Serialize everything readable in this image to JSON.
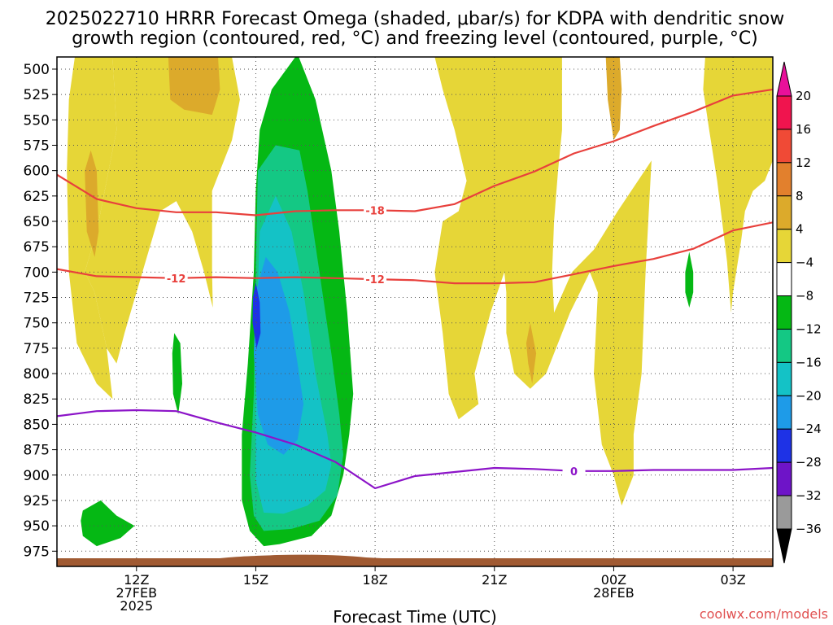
{
  "chart_data": {
    "type": "contour",
    "title_line1": "2025022710 HRRR Forecast Omega (shaded, μbar/s) for KDPA with dendritic snow",
    "title_line2": "growth region (contoured, red, °C) and freezing level (contoured, purple, °C)",
    "xlabel": "Forecast Time (UTC)",
    "credit": "coolwx.com/models",
    "y_axis": {
      "unit": "hPa",
      "range": [
        488,
        990
      ],
      "ticks": [
        500,
        525,
        550,
        575,
        600,
        625,
        650,
        675,
        700,
        725,
        750,
        775,
        800,
        825,
        850,
        875,
        900,
        925,
        950,
        975
      ]
    },
    "x_axis": {
      "range_hours_since_12z": [
        -2,
        16
      ],
      "ticks": [
        {
          "h": 0,
          "lines": [
            "12Z",
            "27FEB",
            "2025"
          ]
        },
        {
          "h": 3,
          "lines": [
            "15Z"
          ]
        },
        {
          "h": 6,
          "lines": [
            "18Z"
          ]
        },
        {
          "h": 9,
          "lines": [
            "21Z"
          ]
        },
        {
          "h": 12,
          "lines": [
            "00Z",
            "28FEB"
          ]
        },
        {
          "h": 15,
          "lines": [
            "03Z"
          ]
        }
      ]
    },
    "colorbar": {
      "labels": [
        "20",
        "16",
        "12",
        "8",
        "4",
        "−4",
        "−8",
        "−12",
        "−16",
        "−20",
        "−24",
        "−28",
        "−32",
        "−36"
      ],
      "colors": [
        "#f0144e",
        "#f04a36",
        "#e2802d",
        "#dcaa2b",
        "#e6d637",
        "#ffffff",
        "#05b814",
        "#14c884",
        "#14c2c6",
        "#1e9be8",
        "#1e32e6",
        "#6e14c8",
        "#a00ac8",
        "#9a9a9a"
      ],
      "top_arrow_color": "#e8109a",
      "bottom_arrow_color": "#000000"
    },
    "contours": {
      "dgz_minus18": {
        "label": "-18",
        "color": "#e8403c",
        "points": [
          [
            -2,
            604
          ],
          [
            -1,
            628
          ],
          [
            0,
            637
          ],
          [
            1,
            641
          ],
          [
            2,
            641
          ],
          [
            3,
            644
          ],
          [
            4,
            640
          ],
          [
            5,
            639
          ],
          [
            6,
            639
          ],
          [
            7,
            640
          ],
          [
            8,
            633
          ],
          [
            9,
            615
          ],
          [
            10,
            601
          ],
          [
            11,
            583
          ],
          [
            12,
            571
          ],
          [
            13,
            556
          ],
          [
            14,
            542
          ],
          [
            15,
            526
          ],
          [
            16,
            520
          ]
        ]
      },
      "dgz_minus12": {
        "label": "-12",
        "color": "#e8403c",
        "points": [
          [
            -2,
            697
          ],
          [
            -1,
            704
          ],
          [
            0,
            705
          ],
          [
            1,
            706
          ],
          [
            2,
            705
          ],
          [
            3,
            706
          ],
          [
            4,
            705
          ],
          [
            5,
            706
          ],
          [
            6,
            707
          ],
          [
            7,
            708
          ],
          [
            8,
            711
          ],
          [
            9,
            711
          ],
          [
            10,
            710
          ],
          [
            11,
            702
          ],
          [
            12,
            694
          ],
          [
            13,
            687
          ],
          [
            14,
            677
          ],
          [
            15,
            659
          ],
          [
            16,
            651
          ]
        ]
      },
      "freezing_level": {
        "label": "0",
        "color": "#8c14c8",
        "points": [
          [
            -2,
            842
          ],
          [
            -1,
            837
          ],
          [
            0,
            836
          ],
          [
            1,
            837
          ],
          [
            2,
            848
          ],
          [
            3,
            858
          ],
          [
            4,
            870
          ],
          [
            5,
            887
          ],
          [
            6,
            913
          ],
          [
            7,
            901
          ],
          [
            8,
            897
          ],
          [
            9,
            893
          ],
          [
            10,
            894
          ],
          [
            11,
            896
          ],
          [
            12,
            896
          ],
          [
            13,
            895
          ],
          [
            14,
            895
          ],
          [
            15,
            895
          ],
          [
            16,
            893
          ]
        ]
      }
    },
    "omega_regions": [
      {
        "level": "4",
        "color": "#e6d637",
        "points": [
          [
            -1.55,
            488
          ],
          [
            -0.6,
            488
          ],
          [
            -0.5,
            560
          ],
          [
            -1.0,
            660
          ],
          [
            -1.3,
            700
          ],
          [
            -1.05,
            720
          ],
          [
            -0.75,
            775
          ],
          [
            -0.6,
            825
          ],
          [
            -1.0,
            810
          ],
          [
            -1.5,
            770
          ],
          [
            -1.7,
            700
          ],
          [
            -1.75,
            600
          ],
          [
            -1.7,
            530
          ]
        ]
      },
      {
        "level": "4",
        "color": "#e6d637",
        "points": [
          [
            -0.6,
            488
          ],
          [
            2.4,
            488
          ],
          [
            2.6,
            530
          ],
          [
            2.4,
            570
          ],
          [
            1.9,
            620
          ],
          [
            1.9,
            700
          ],
          [
            1.92,
            735
          ],
          [
            1.7,
            700
          ],
          [
            1.4,
            660
          ],
          [
            1.0,
            630
          ],
          [
            0.6,
            640
          ],
          [
            0.15,
            700
          ],
          [
            -0.3,
            760
          ],
          [
            -0.5,
            790
          ],
          [
            -0.75,
            775
          ],
          [
            -1.05,
            720
          ],
          [
            -1.3,
            700
          ],
          [
            -1.0,
            660
          ],
          [
            -0.5,
            560
          ]
        ]
      },
      {
        "level": "8",
        "color": "#dcaa2b",
        "points": [
          [
            0.8,
            488
          ],
          [
            2.05,
            488
          ],
          [
            2.1,
            520
          ],
          [
            1.9,
            545
          ],
          [
            1.2,
            540
          ],
          [
            0.85,
            530
          ]
        ]
      },
      {
        "level": "8",
        "color": "#dcaa2b",
        "points": [
          [
            -1.15,
            580
          ],
          [
            -1.0,
            600
          ],
          [
            -0.95,
            660
          ],
          [
            -1.05,
            685
          ],
          [
            -1.25,
            660
          ],
          [
            -1.3,
            600
          ]
        ]
      },
      {
        "level": "4",
        "color": "#e6d637",
        "points": [
          [
            7.5,
            488
          ],
          [
            9.6,
            488
          ],
          [
            10.7,
            488
          ],
          [
            10.7,
            560
          ],
          [
            10.6,
            600
          ],
          [
            10.5,
            650
          ],
          [
            10.45,
            700
          ],
          [
            10.5,
            740
          ],
          [
            10.95,
            700
          ],
          [
            11.5,
            678
          ],
          [
            12.1,
            640
          ],
          [
            12.95,
            590
          ],
          [
            12.8,
            700
          ],
          [
            12.7,
            800
          ],
          [
            12.5,
            860
          ],
          [
            12.5,
            900
          ],
          [
            12.2,
            930
          ],
          [
            12.0,
            900
          ],
          [
            11.7,
            870
          ],
          [
            11.5,
            800
          ],
          [
            11.6,
            720
          ],
          [
            11.4,
            700
          ],
          [
            10.9,
            740
          ],
          [
            10.3,
            800
          ],
          [
            9.9,
            815
          ],
          [
            9.5,
            800
          ],
          [
            9.3,
            760
          ],
          [
            9.3,
            720
          ],
          [
            9.25,
            700
          ],
          [
            8.9,
            740
          ],
          [
            8.5,
            800
          ],
          [
            8.6,
            830
          ],
          [
            8.1,
            845
          ],
          [
            7.85,
            820
          ],
          [
            7.7,
            760
          ],
          [
            7.5,
            700
          ],
          [
            7.7,
            650
          ],
          [
            8.1,
            640
          ],
          [
            8.3,
            610
          ],
          [
            8.0,
            560
          ],
          [
            7.7,
            520
          ]
        ]
      },
      {
        "level": "8",
        "color": "#dcaa2b",
        "points": [
          [
            11.8,
            488
          ],
          [
            12.15,
            488
          ],
          [
            12.2,
            520
          ],
          [
            12.15,
            560
          ],
          [
            12.0,
            570
          ],
          [
            11.85,
            530
          ]
        ]
      },
      {
        "level": "8",
        "color": "#dcaa2b",
        "points": [
          [
            9.9,
            750
          ],
          [
            10.05,
            780
          ],
          [
            9.95,
            810
          ],
          [
            9.85,
            790
          ],
          [
            9.8,
            770
          ]
        ]
      },
      {
        "level": "4",
        "color": "#e6d637",
        "points": [
          [
            14.3,
            488
          ],
          [
            16,
            488
          ],
          [
            16,
            590
          ],
          [
            15.8,
            610
          ],
          [
            15.5,
            620
          ],
          [
            15.3,
            640
          ],
          [
            15.2,
            670
          ],
          [
            15.0,
            720
          ],
          [
            14.95,
            740
          ],
          [
            14.85,
            690
          ],
          [
            14.6,
            610
          ],
          [
            14.4,
            560
          ],
          [
            14.25,
            520
          ]
        ]
      },
      {
        "level": "-4",
        "color": "#05b814",
        "points": [
          [
            3.4,
            520
          ],
          [
            4.05,
            485
          ],
          [
            4.5,
            530
          ],
          [
            4.9,
            600
          ],
          [
            5.1,
            660
          ],
          [
            5.3,
            740
          ],
          [
            5.45,
            820
          ],
          [
            5.35,
            860
          ],
          [
            5.2,
            900
          ],
          [
            4.9,
            940
          ],
          [
            4.4,
            960
          ],
          [
            3.6,
            968
          ],
          [
            3.2,
            970
          ],
          [
            2.85,
            955
          ],
          [
            2.65,
            925
          ],
          [
            2.65,
            860
          ],
          [
            2.8,
            790
          ],
          [
            2.95,
            700
          ],
          [
            3.0,
            620
          ],
          [
            3.1,
            560
          ]
        ]
      },
      {
        "level": "-4",
        "color": "#05b814",
        "points": [
          [
            -1.35,
            935
          ],
          [
            -0.9,
            925
          ],
          [
            -0.5,
            940
          ],
          [
            -0.05,
            950
          ],
          [
            -0.4,
            962
          ],
          [
            -1.0,
            970
          ],
          [
            -1.35,
            960
          ],
          [
            -1.4,
            945
          ]
        ]
      },
      {
        "level": "-4",
        "color": "#05b814",
        "points": [
          [
            0.95,
            760
          ],
          [
            1.1,
            770
          ],
          [
            1.15,
            810
          ],
          [
            1.05,
            840
          ],
          [
            0.92,
            820
          ],
          [
            0.9,
            780
          ]
        ]
      },
      {
        "level": "-4",
        "color": "#05b814",
        "points": [
          [
            13.9,
            680
          ],
          [
            14.0,
            700
          ],
          [
            14.0,
            720
          ],
          [
            13.9,
            735
          ],
          [
            13.8,
            720
          ],
          [
            13.8,
            700
          ]
        ]
      },
      {
        "level": "-8",
        "color": "#14c884",
        "points": [
          [
            3.05,
            600
          ],
          [
            3.5,
            575
          ],
          [
            4.1,
            580
          ],
          [
            4.3,
            620
          ],
          [
            4.6,
            700
          ],
          [
            4.9,
            780
          ],
          [
            5.1,
            840
          ],
          [
            5.2,
            880
          ],
          [
            5.05,
            920
          ],
          [
            4.6,
            945
          ],
          [
            3.9,
            953
          ],
          [
            3.2,
            955
          ],
          [
            2.95,
            940
          ],
          [
            2.85,
            900
          ],
          [
            2.95,
            820
          ],
          [
            3.0,
            700
          ]
        ]
      },
      {
        "level": "-12",
        "color": "#14c2c6",
        "points": [
          [
            3.1,
            660
          ],
          [
            3.5,
            625
          ],
          [
            3.9,
            660
          ],
          [
            4.2,
            720
          ],
          [
            4.5,
            800
          ],
          [
            4.8,
            860
          ],
          [
            4.9,
            890
          ],
          [
            4.75,
            915
          ],
          [
            4.3,
            930
          ],
          [
            3.7,
            938
          ],
          [
            3.2,
            937
          ],
          [
            3.0,
            905
          ],
          [
            3.0,
            820
          ],
          [
            3.05,
            720
          ]
        ]
      },
      {
        "level": "-16",
        "color": "#1e9be8",
        "points": [
          [
            3.0,
            720
          ],
          [
            3.25,
            685
          ],
          [
            3.55,
            700
          ],
          [
            3.85,
            740
          ],
          [
            4.05,
            790
          ],
          [
            4.2,
            830
          ],
          [
            4.05,
            865
          ],
          [
            3.7,
            880
          ],
          [
            3.3,
            870
          ],
          [
            3.05,
            840
          ],
          [
            2.95,
            780
          ]
        ]
      },
      {
        "level": "-20",
        "color": "#1e32e6",
        "points": [
          [
            3.0,
            710
          ],
          [
            3.1,
            730
          ],
          [
            3.12,
            760
          ],
          [
            3.02,
            775
          ],
          [
            2.92,
            750
          ],
          [
            2.93,
            725
          ]
        ]
      }
    ]
  }
}
